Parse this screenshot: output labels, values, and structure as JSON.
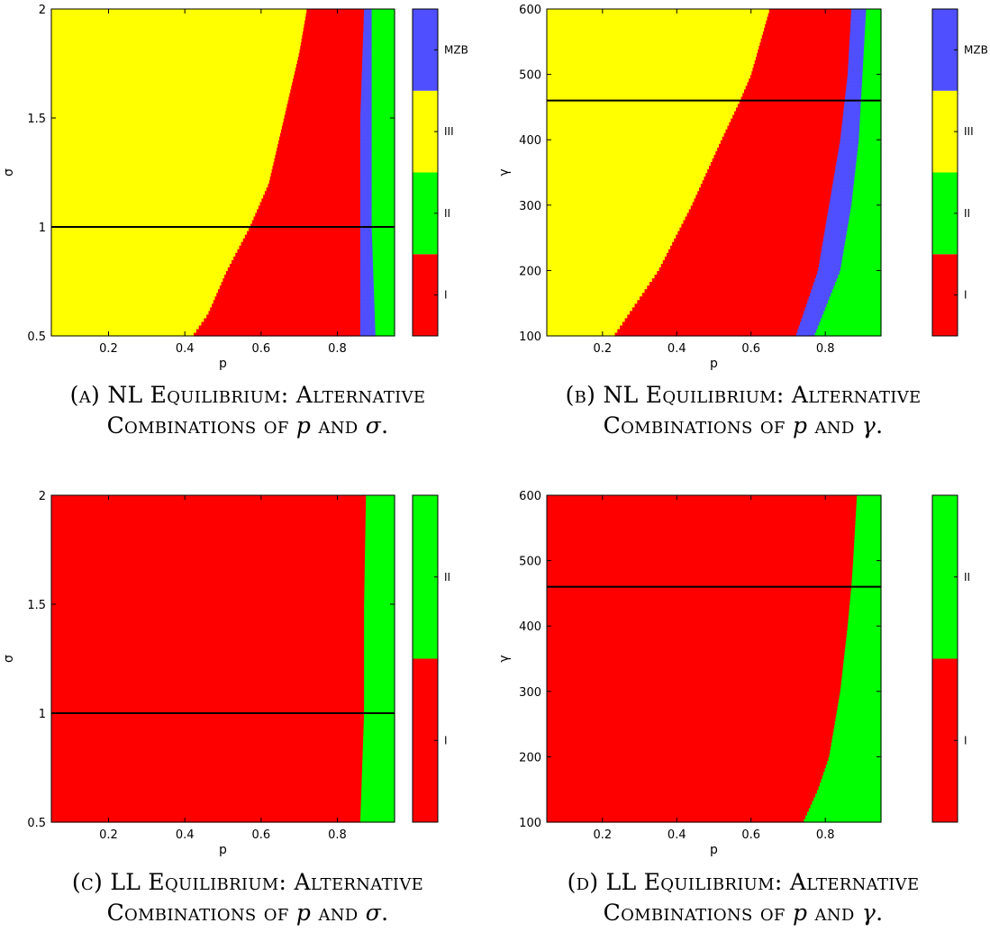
{
  "chart_data": [
    {
      "id": "A",
      "type": "heatmap",
      "xlabel": "p",
      "ylabel": "σ",
      "xlim": [
        0.05,
        0.95
      ],
      "ylim": [
        0.5,
        2
      ],
      "xticks": [
        "0.2",
        "0.4",
        "0.6",
        "0.8"
      ],
      "xtick_values": [
        0.2,
        0.4,
        0.6,
        0.8
      ],
      "yticks": [
        "0.5",
        "1",
        "1.5",
        "2"
      ],
      "ytick_values": [
        0.5,
        1,
        1.5,
        2
      ],
      "reference_line_y": 1,
      "regions": [
        {
          "label": "III",
          "boundary_p": [
            [
              0.5,
              0.42
            ],
            [
              0.6,
              0.46
            ],
            [
              0.8,
              0.51
            ],
            [
              1.0,
              0.57
            ],
            [
              1.2,
              0.62
            ],
            [
              1.5,
              0.66
            ],
            [
              1.8,
              0.7
            ],
            [
              2.0,
              0.72
            ]
          ]
        },
        {
          "label": "I",
          "boundary_p": [
            [
              0.5,
              0.86
            ],
            [
              1.0,
              0.86
            ],
            [
              1.5,
              0.86
            ],
            [
              2.0,
              0.87
            ]
          ]
        },
        {
          "label": "MZB",
          "boundary_p": [
            [
              0.5,
              0.9
            ],
            [
              1.0,
              0.89
            ],
            [
              1.5,
              0.89
            ],
            [
              2.0,
              0.89
            ]
          ]
        },
        {
          "label": "II",
          "boundary_p": [
            [
              0.5,
              0.95
            ],
            [
              2.0,
              0.95
            ]
          ]
        }
      ],
      "colorbar": [
        {
          "label": "I",
          "color": "#ff0000"
        },
        {
          "label": "II",
          "color": "#00ff00"
        },
        {
          "label": "III",
          "color": "#ffff00"
        },
        {
          "label": "MZB",
          "color": "#4f4fff"
        }
      ]
    },
    {
      "id": "B",
      "type": "heatmap",
      "xlabel": "p",
      "ylabel": "γ",
      "xlim": [
        0.05,
        0.95
      ],
      "ylim": [
        100,
        600
      ],
      "xticks": [
        "0.2",
        "0.4",
        "0.6",
        "0.8"
      ],
      "xtick_values": [
        0.2,
        0.4,
        0.6,
        0.8
      ],
      "yticks": [
        "100",
        "200",
        "300",
        "400",
        "500",
        "600"
      ],
      "ytick_values": [
        100,
        200,
        300,
        400,
        500,
        600
      ],
      "reference_line_y": 460,
      "regions": [
        {
          "label": "III",
          "boundary_p": [
            [
              100,
              0.23
            ],
            [
              200,
              0.35
            ],
            [
              300,
              0.44
            ],
            [
              400,
              0.52
            ],
            [
              460,
              0.57
            ],
            [
              500,
              0.6
            ],
            [
              600,
              0.65
            ]
          ]
        },
        {
          "label": "I",
          "boundary_p": [
            [
              100,
              0.72
            ],
            [
              200,
              0.78
            ],
            [
              300,
              0.81
            ],
            [
              400,
              0.84
            ],
            [
              500,
              0.86
            ],
            [
              600,
              0.87
            ]
          ]
        },
        {
          "label": "MZB",
          "boundary_p": [
            [
              100,
              0.77
            ],
            [
              200,
              0.84
            ],
            [
              300,
              0.87
            ],
            [
              400,
              0.89
            ],
            [
              500,
              0.9
            ],
            [
              600,
              0.91
            ]
          ]
        },
        {
          "label": "II",
          "boundary_p": [
            [
              100,
              0.95
            ],
            [
              600,
              0.95
            ]
          ]
        }
      ],
      "colorbar": [
        {
          "label": "I",
          "color": "#ff0000"
        },
        {
          "label": "II",
          "color": "#00ff00"
        },
        {
          "label": "III",
          "color": "#ffff00"
        },
        {
          "label": "MZB",
          "color": "#4f4fff"
        }
      ]
    },
    {
      "id": "C",
      "type": "heatmap",
      "xlabel": "p",
      "ylabel": "σ",
      "xlim": [
        0.05,
        0.95
      ],
      "ylim": [
        0.5,
        2
      ],
      "xticks": [
        "0.2",
        "0.4",
        "0.6",
        "0.8"
      ],
      "xtick_values": [
        0.2,
        0.4,
        0.6,
        0.8
      ],
      "yticks": [
        "0.5",
        "1",
        "1.5",
        "2"
      ],
      "ytick_values": [
        0.5,
        1,
        1.5,
        2
      ],
      "reference_line_y": 1,
      "regions": [
        {
          "label": "I",
          "boundary_p": [
            [
              0.5,
              0.86
            ],
            [
              1.0,
              0.87
            ],
            [
              1.5,
              0.87
            ],
            [
              2.0,
              0.875
            ]
          ]
        },
        {
          "label": "II",
          "boundary_p": [
            [
              0.5,
              0.95
            ],
            [
              2.0,
              0.95
            ]
          ]
        }
      ],
      "colorbar": [
        {
          "label": "I",
          "color": "#ff0000"
        },
        {
          "label": "II",
          "color": "#00ff00"
        }
      ]
    },
    {
      "id": "D",
      "type": "heatmap",
      "xlabel": "p",
      "ylabel": "γ",
      "xlim": [
        0.05,
        0.95
      ],
      "ylim": [
        100,
        600
      ],
      "xticks": [
        "0.2",
        "0.4",
        "0.6",
        "0.8"
      ],
      "xtick_values": [
        0.2,
        0.4,
        0.6,
        0.8
      ],
      "yticks": [
        "100",
        "200",
        "300",
        "400",
        "500",
        "600"
      ],
      "ytick_values": [
        100,
        200,
        300,
        400,
        500,
        600
      ],
      "reference_line_y": 460,
      "regions": [
        {
          "label": "I",
          "boundary_p": [
            [
              100,
              0.74
            ],
            [
              150,
              0.78
            ],
            [
              200,
              0.81
            ],
            [
              300,
              0.84
            ],
            [
              400,
              0.86
            ],
            [
              460,
              0.87
            ],
            [
              500,
              0.875
            ],
            [
              600,
              0.885
            ]
          ]
        },
        {
          "label": "II",
          "boundary_p": [
            [
              100,
              0.95
            ],
            [
              600,
              0.95
            ]
          ]
        }
      ],
      "colorbar": [
        {
          "label": "I",
          "color": "#ff0000"
        },
        {
          "label": "II",
          "color": "#00ff00"
        }
      ]
    }
  ],
  "captions": {
    "A": {
      "line1": "(a) NL Equilibrium: Alternative",
      "line2_pre": "Combinations of ",
      "var1": "p",
      "mid": " and ",
      "var2": "σ",
      "end": "."
    },
    "B": {
      "line1": "(b) NL Equilibrium: Alternative",
      "line2_pre": "Combinations of ",
      "var1": "p",
      "mid": " and ",
      "var2": "γ",
      "end": "."
    },
    "C": {
      "line1": "(c) LL Equilibrium: Alternative",
      "line2_pre": "Combinations of ",
      "var1": "p",
      "mid": " and ",
      "var2": "σ",
      "end": "."
    },
    "D": {
      "line1": "(d) LL Equilibrium: Alternative",
      "line2_pre": "Combinations of ",
      "var1": "p",
      "mid": " and ",
      "var2": "γ",
      "end": "."
    }
  }
}
